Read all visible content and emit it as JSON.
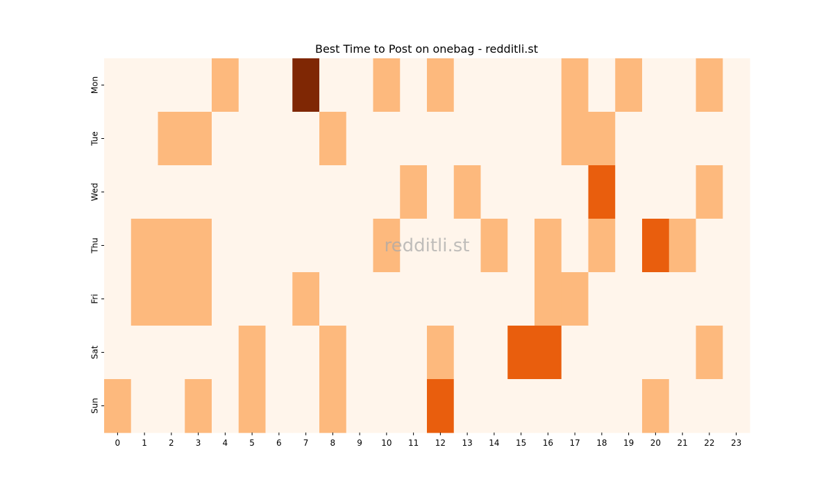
{
  "chart_data": {
    "type": "heatmap",
    "title": "Best Time to Post on onebag - redditli.st",
    "watermark": "redditli.st",
    "x_categories": [
      "0",
      "1",
      "2",
      "3",
      "4",
      "5",
      "6",
      "7",
      "8",
      "9",
      "10",
      "11",
      "12",
      "13",
      "14",
      "15",
      "16",
      "17",
      "18",
      "19",
      "20",
      "21",
      "22",
      "23"
    ],
    "y_categories": [
      "Mon",
      "Tue",
      "Wed",
      "Thu",
      "Fri",
      "Sat",
      "Sun"
    ],
    "xlabel": "",
    "ylabel": "",
    "colorscale": [
      "#fff5eb",
      "#fdb97d",
      "#e95e0d",
      "#7f2704"
    ],
    "values": [
      [
        0,
        0,
        0,
        0,
        1,
        0,
        0,
        3,
        0,
        0,
        1,
        0,
        1,
        0,
        0,
        0,
        0,
        1,
        0,
        1,
        0,
        0,
        1,
        0
      ],
      [
        0,
        0,
        1,
        1,
        0,
        0,
        0,
        0,
        1,
        0,
        0,
        0,
        0,
        0,
        0,
        0,
        0,
        1,
        1,
        0,
        0,
        0,
        0,
        0
      ],
      [
        0,
        0,
        0,
        0,
        0,
        0,
        0,
        0,
        0,
        0,
        0,
        1,
        0,
        1,
        0,
        0,
        0,
        0,
        2,
        0,
        0,
        0,
        1,
        0
      ],
      [
        0,
        1,
        1,
        1,
        0,
        0,
        0,
        0,
        0,
        0,
        1,
        0,
        0,
        0,
        1,
        0,
        1,
        0,
        1,
        0,
        2,
        1,
        0,
        0
      ],
      [
        0,
        1,
        1,
        1,
        0,
        0,
        0,
        1,
        0,
        0,
        0,
        0,
        0,
        0,
        0,
        0,
        1,
        1,
        0,
        0,
        0,
        0,
        0,
        0
      ],
      [
        0,
        0,
        0,
        0,
        0,
        1,
        0,
        0,
        1,
        0,
        0,
        0,
        1,
        0,
        0,
        2,
        2,
        0,
        0,
        0,
        0,
        0,
        1,
        0
      ],
      [
        1,
        0,
        0,
        1,
        0,
        1,
        0,
        0,
        1,
        0,
        0,
        0,
        2,
        0,
        0,
        0,
        0,
        0,
        0,
        0,
        1,
        0,
        0,
        0
      ]
    ]
  }
}
